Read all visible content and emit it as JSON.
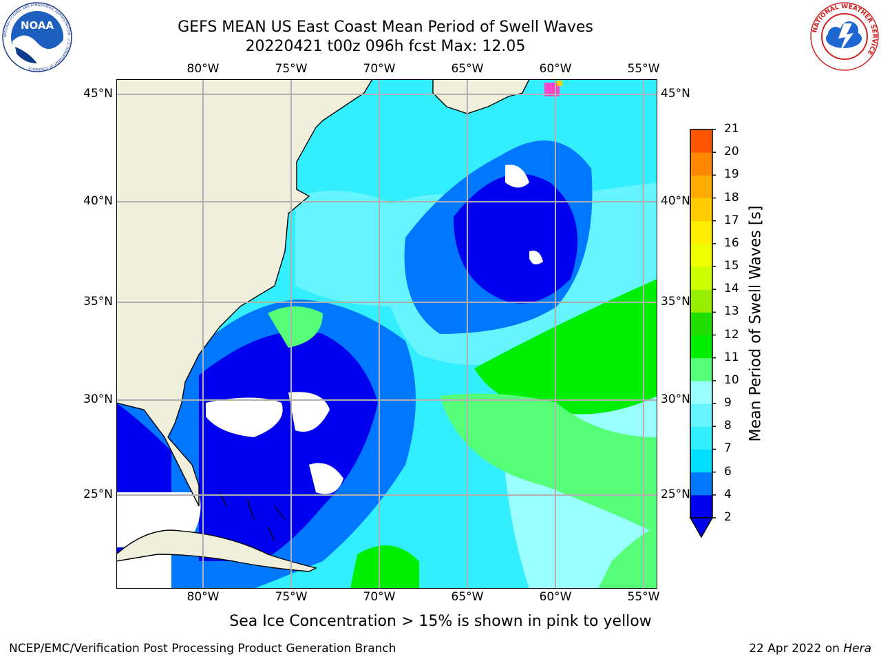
{
  "header": {
    "title_line1": "GEFS MEAN US East Coast Mean Period of Swell Waves",
    "title_line2": "20220421 t00z 096h fcst   Max: 12.05"
  },
  "logos": {
    "left": {
      "icon": "noaa-logo",
      "ring_text": "NATIONAL OCEANIC AND ATMOSPHERIC ADMINISTRATION · U.S. DEPARTMENT OF COMMERCE",
      "center_text": "NOAA"
    },
    "right": {
      "icon": "nws-logo",
      "ring_text": "NATIONAL WEATHER SERVICE"
    }
  },
  "map": {
    "lon_labels": [
      "80°W",
      "75°W",
      "70°W",
      "65°W",
      "60°W",
      "55°W"
    ],
    "lat_labels": [
      "45°N",
      "40°N",
      "35°N",
      "30°N",
      "25°N"
    ],
    "lon_range": [
      -85,
      -54
    ],
    "lat_range": [
      20.5,
      46
    ],
    "colors": {
      "land": "#efefdc",
      "grid": "#b0b0b0",
      "ice": "#ff44cc",
      "coast": "#000000",
      "no_data": "#ffffff"
    }
  },
  "colorbar": {
    "label": "Mean Period of Swell Waves [s]",
    "ticks": [
      "2",
      "4",
      "6",
      "7",
      "8",
      "9",
      "10",
      "11",
      "12",
      "13",
      "14",
      "15",
      "16",
      "17",
      "18",
      "19",
      "20",
      "21"
    ],
    "colors": [
      "#0000ee",
      "#0077ff",
      "#00ddff",
      "#33eeff",
      "#66f5ff",
      "#99ffff",
      "#55ff77",
      "#00ee00",
      "#22dd00",
      "#99ee00",
      "#ccff00",
      "#eeff00",
      "#ffee00",
      "#ffcc00",
      "#ffaa00",
      "#ff8800",
      "#ff5500",
      "#ff2200",
      "#ff0000"
    ]
  },
  "footer": {
    "caption": "Sea Ice Concentration > 15% is shown in pink to yellow",
    "credit": "NCEP/EMC/Verification Post Processing Product Generation Branch",
    "date": "22 Apr 2022 on",
    "host": "Hera"
  }
}
